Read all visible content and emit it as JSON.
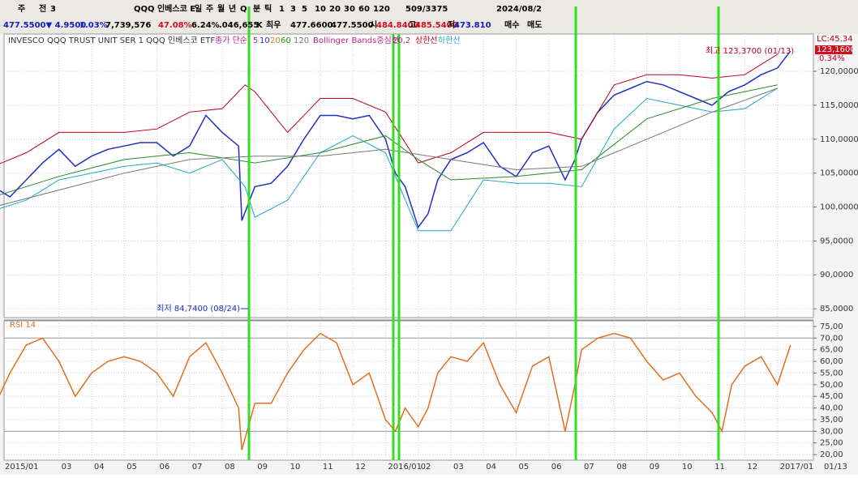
{
  "toolbar": {
    "row1": [
      "주",
      "전",
      "3",
      "QQQ 인베스코 E",
      "일",
      "주",
      "월",
      "년",
      "Q",
      "분",
      "틱",
      "1",
      "3",
      "5",
      "10",
      "20",
      "30",
      "60",
      "120",
      "509/3375",
      "2024/08/2"
    ],
    "row2": [
      "477.5500▼ 4.9500",
      "1.03%",
      "7,739,576",
      "47.08%",
      "6.24%",
      ".046,655",
      "K",
      "최우",
      "477.6600",
      "477.5500",
      "시",
      "484.8400",
      "고",
      "485.5400",
      "저",
      "473.810",
      "매수",
      "매도"
    ]
  },
  "legend": {
    "name": "INVESCO QQQ TRUST UNIT SER 1  QQQ 인베스코 ETF",
    "ma": "종가 단순",
    "bb": "Bollinger Bands중심선",
    "bb_param": "20,2",
    "extra_ma": [
      "10",
      "20"
    ]
  },
  "right_axis": {
    "lc": "LC:45.34",
    "last": "123,1600",
    "change": "0.34%"
  },
  "chart_data": [
    {
      "type": "line",
      "annotations": {
        "high": "최고 123,3700 (01/13)",
        "low": "최저 84,7400 (08/24)"
      },
      "xlim": [
        0.32,
        25.1
      ],
      "xticks": [
        {
          "value": 0,
          "label": "2015/01"
        },
        {
          "value": 2,
          "label": "03"
        },
        {
          "value": 3,
          "label": "04"
        },
        {
          "value": 4,
          "label": "05"
        },
        {
          "value": 5,
          "label": "06"
        },
        {
          "value": 6,
          "label": "07"
        },
        {
          "value": 7,
          "label": "08"
        },
        {
          "value": 8,
          "label": "09"
        },
        {
          "value": 9,
          "label": "10"
        },
        {
          "value": 10,
          "label": "11"
        },
        {
          "value": 11,
          "label": "12"
        },
        {
          "value": 12,
          "label": "2016/01"
        },
        {
          "value": 13,
          "label": "02"
        },
        {
          "value": 14,
          "label": "03"
        },
        {
          "value": 15,
          "label": "04"
        },
        {
          "value": 16,
          "label": "05"
        },
        {
          "value": 17,
          "label": "06"
        },
        {
          "value": 18,
          "label": "07"
        },
        {
          "value": 19,
          "label": "08"
        },
        {
          "value": 20,
          "label": "09"
        },
        {
          "value": 21,
          "label": "10"
        },
        {
          "value": 22,
          "label": "11"
        },
        {
          "value": 23,
          "label": "12"
        },
        {
          "value": 24,
          "label": "2017/01"
        }
      ],
      "last_date": "01/13",
      "ylim": [
        83.7,
        125.5
      ],
      "yticks": [
        {
          "value": 85,
          "label": "85,0000"
        },
        {
          "value": 90,
          "label": "90,0000"
        },
        {
          "value": 95,
          "label": "95,0000"
        },
        {
          "value": 100,
          "label": "100,0000"
        },
        {
          "value": 105,
          "label": "105,0000"
        },
        {
          "value": 110,
          "label": "110,0000"
        },
        {
          "value": 115,
          "label": "115,0000"
        },
        {
          "value": 120,
          "label": "120,0000"
        }
      ],
      "series": [
        {
          "name": "5",
          "color": "#2030c0",
          "x": [
            0,
            0.5,
            1,
            1.5,
            2,
            2.5,
            3,
            3.5,
            4,
            4.5,
            5,
            5.5,
            6,
            6.5,
            7,
            7.5,
            7.6,
            8,
            8.5,
            9,
            9.5,
            10,
            10.5,
            11,
            11.5,
            12,
            12.3,
            12.6,
            13,
            13.3,
            13.6,
            14,
            14.5,
            15,
            15.5,
            16,
            16.5,
            17,
            17.5,
            17.8,
            18,
            18.5,
            19,
            19.5,
            20,
            20.5,
            21,
            21.5,
            22,
            22.5,
            23,
            23.5,
            24,
            24.4
          ],
          "values": [
            103,
            101.5,
            104,
            106.5,
            108.5,
            106,
            107.5,
            108.5,
            109,
            109.5,
            109.5,
            107.5,
            109,
            113.5,
            111,
            109,
            98,
            103,
            103.5,
            106,
            110,
            113.5,
            113.5,
            113,
            113.5,
            110,
            105,
            103,
            97,
            99,
            104,
            107,
            108,
            109.5,
            106,
            104.5,
            108,
            109,
            104,
            107,
            110,
            114,
            116.5,
            117.5,
            118.5,
            118,
            117,
            116,
            115,
            117,
            118,
            119.5,
            120.5,
            123
          ]
        },
        {
          "name": "상한선",
          "color": "#c00018",
          "x": [
            0,
            1,
            2,
            3,
            4,
            5,
            6,
            7,
            7.7,
            8,
            9,
            10,
            11,
            12,
            13,
            14,
            15,
            16,
            17,
            18,
            19,
            20,
            21,
            22,
            23,
            24
          ],
          "values": [
            106,
            108,
            111,
            111,
            111,
            111.5,
            114,
            114.5,
            118,
            117,
            111,
            116,
            116,
            114,
            106.5,
            108,
            111,
            111,
            111,
            110,
            118,
            119.5,
            119.5,
            119,
            119.5,
            122.5
          ]
        },
        {
          "name": "하한선",
          "color": "#20a8c0",
          "x": [
            0,
            1,
            2,
            3,
            4,
            5,
            6,
            7,
            7.7,
            8,
            9,
            10,
            11,
            12,
            13,
            14,
            15,
            16,
            17,
            18,
            19,
            20,
            21,
            22,
            23,
            24
          ],
          "values": [
            99.5,
            101,
            104,
            105,
            106,
            106.5,
            105,
            107,
            103,
            98.5,
            101,
            108,
            110.5,
            108,
            96.5,
            96.5,
            104,
            103.5,
            103.5,
            103,
            111.5,
            116,
            115,
            114,
            114.5,
            117.5
          ]
        },
        {
          "name": "60",
          "color": "#2a8a2a",
          "x": [
            0,
            2,
            4,
            6,
            8,
            10,
            12,
            13,
            14,
            16,
            18,
            20,
            22,
            24
          ],
          "values": [
            101.5,
            104.5,
            107,
            108,
            106.5,
            108,
            110.5,
            107,
            104,
            104.5,
            105.5,
            113,
            116,
            118
          ]
        },
        {
          "name": "120",
          "color": "#777777",
          "x": [
            0,
            2,
            4,
            6,
            8,
            10,
            12,
            14,
            16,
            18,
            20,
            22,
            24
          ],
          "values": [
            100,
            102.5,
            105,
            107,
            107.5,
            107.5,
            108.5,
            107,
            105.5,
            106,
            110,
            114,
            117.5
          ]
        }
      ]
    },
    {
      "type": "line",
      "title": "RSI 14",
      "xlim": [
        0.32,
        25.1
      ],
      "ylim": [
        17.6,
        77.4
      ],
      "yticks": [
        {
          "value": 20,
          "label": "20,00"
        },
        {
          "value": 25,
          "label": "25,00"
        },
        {
          "value": 30,
          "label": "30,00"
        },
        {
          "value": 35,
          "label": "35,00"
        },
        {
          "value": 40,
          "label": "40,00"
        },
        {
          "value": 45,
          "label": "45,00"
        },
        {
          "value": 50,
          "label": "50,00"
        },
        {
          "value": 55,
          "label": "55,00"
        },
        {
          "value": 60,
          "label": "60,00"
        },
        {
          "value": 65,
          "label": "65,00"
        },
        {
          "value": 70,
          "label": "70,00"
        },
        {
          "value": 75,
          "label": "75,00"
        }
      ],
      "series": [
        {
          "name": "RSI 14",
          "color": "#e07020",
          "x": [
            0,
            0.5,
            1,
            1.5,
            2,
            2.5,
            3,
            3.5,
            4,
            4.5,
            5,
            5.5,
            6,
            6.5,
            7,
            7.5,
            7.6,
            8,
            8.5,
            9,
            9.5,
            10,
            10.5,
            11,
            11.5,
            12,
            12.3,
            12.6,
            13,
            13.3,
            13.6,
            14,
            14.5,
            15,
            15.5,
            16,
            16.5,
            17,
            17.5,
            17.8,
            18,
            18.5,
            19,
            19.5,
            20,
            20.5,
            21,
            21.5,
            22,
            22.3,
            22.6,
            23,
            23.5,
            24,
            24.4
          ],
          "values": [
            40,
            55,
            67,
            70,
            60,
            45,
            55,
            60,
            62,
            60,
            55,
            45,
            62,
            68,
            55,
            40,
            22,
            42,
            42,
            55,
            65,
            72,
            68,
            50,
            55,
            35,
            30,
            40,
            32,
            40,
            55,
            62,
            60,
            68,
            50,
            38,
            58,
            62,
            30,
            50,
            65,
            70,
            72,
            70,
            60,
            52,
            55,
            45,
            38,
            30,
            50,
            58,
            62,
            50,
            67
          ]
        }
      ]
    }
  ]
}
